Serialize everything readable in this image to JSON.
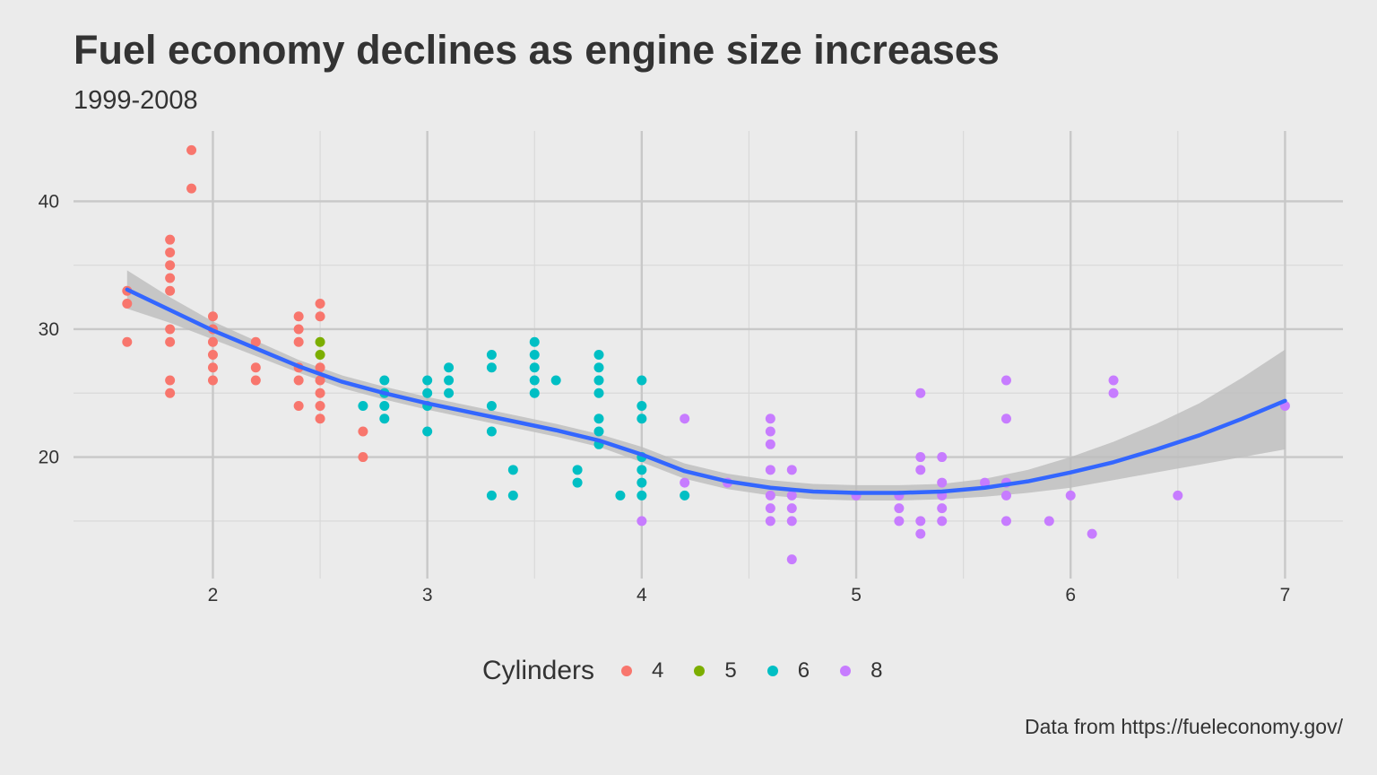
{
  "title": "Fuel economy declines as engine size increases",
  "subtitle": "1999-2008",
  "caption": "Data from https://fueleconomy.gov/",
  "legend": {
    "title": "Cylinders",
    "items": [
      {
        "label": "4",
        "color": "#f8766d"
      },
      {
        "label": "5",
        "color": "#7cae00"
      },
      {
        "label": "6",
        "color": "#00bfc4"
      },
      {
        "label": "8",
        "color": "#c77cff"
      }
    ]
  },
  "chart_data": {
    "type": "scatter",
    "title": "Fuel economy declines as engine size increases",
    "subtitle": "1999-2008",
    "xlabel": "",
    "ylabel": "",
    "xlim": [
      1.35,
      7.27
    ],
    "ylim": [
      10.5,
      45.5
    ],
    "x_ticks": [
      2,
      3,
      4,
      5,
      6,
      7
    ],
    "y_ticks": [
      20,
      30,
      40
    ],
    "grid": true,
    "legend_position": "bottom",
    "background": "#ebebeb",
    "series": [
      {
        "name": "4",
        "color": "#f8766d",
        "points": [
          [
            1.6,
            33
          ],
          [
            1.6,
            32
          ],
          [
            1.6,
            29
          ],
          [
            1.8,
            37
          ],
          [
            1.8,
            36
          ],
          [
            1.8,
            35
          ],
          [
            1.8,
            34
          ],
          [
            1.8,
            33
          ],
          [
            1.8,
            30
          ],
          [
            1.8,
            29
          ],
          [
            1.8,
            26
          ],
          [
            1.8,
            25
          ],
          [
            1.9,
            44
          ],
          [
            1.9,
            41
          ],
          [
            2.0,
            31
          ],
          [
            2.0,
            30
          ],
          [
            2.0,
            29
          ],
          [
            2.0,
            28
          ],
          [
            2.0,
            27
          ],
          [
            2.0,
            26
          ],
          [
            2.2,
            29
          ],
          [
            2.2,
            27
          ],
          [
            2.2,
            26
          ],
          [
            2.4,
            31
          ],
          [
            2.4,
            30
          ],
          [
            2.4,
            29
          ],
          [
            2.4,
            27
          ],
          [
            2.4,
            26
          ],
          [
            2.4,
            24
          ],
          [
            2.5,
            32
          ],
          [
            2.5,
            31
          ],
          [
            2.5,
            27
          ],
          [
            2.5,
            26
          ],
          [
            2.5,
            25
          ],
          [
            2.5,
            24
          ],
          [
            2.5,
            23
          ],
          [
            2.7,
            22
          ],
          [
            2.7,
            20
          ]
        ]
      },
      {
        "name": "5",
        "color": "#7cae00",
        "points": [
          [
            2.5,
            29
          ],
          [
            2.5,
            28
          ]
        ]
      },
      {
        "name": "6",
        "color": "#00bfc4",
        "points": [
          [
            2.7,
            24
          ],
          [
            2.8,
            26
          ],
          [
            2.8,
            25
          ],
          [
            2.8,
            24
          ],
          [
            2.8,
            23
          ],
          [
            3.0,
            26
          ],
          [
            3.0,
            25
          ],
          [
            3.0,
            24
          ],
          [
            3.0,
            22
          ],
          [
            3.1,
            27
          ],
          [
            3.1,
            26
          ],
          [
            3.1,
            25
          ],
          [
            3.3,
            28
          ],
          [
            3.3,
            27
          ],
          [
            3.3,
            24
          ],
          [
            3.3,
            22
          ],
          [
            3.3,
            17
          ],
          [
            3.4,
            19
          ],
          [
            3.4,
            17
          ],
          [
            3.5,
            29
          ],
          [
            3.5,
            28
          ],
          [
            3.5,
            27
          ],
          [
            3.5,
            26
          ],
          [
            3.5,
            25
          ],
          [
            3.6,
            26
          ],
          [
            3.7,
            19
          ],
          [
            3.7,
            18
          ],
          [
            3.8,
            28
          ],
          [
            3.8,
            27
          ],
          [
            3.8,
            26
          ],
          [
            3.8,
            25
          ],
          [
            3.8,
            23
          ],
          [
            3.8,
            22
          ],
          [
            3.8,
            21
          ],
          [
            3.9,
            17
          ],
          [
            4.0,
            26
          ],
          [
            4.0,
            24
          ],
          [
            4.0,
            23
          ],
          [
            4.0,
            20
          ],
          [
            4.0,
            19
          ],
          [
            4.0,
            18
          ],
          [
            4.0,
            17
          ],
          [
            4.2,
            17
          ]
        ]
      },
      {
        "name": "8",
        "color": "#c77cff",
        "points": [
          [
            4.0,
            15
          ],
          [
            4.2,
            23
          ],
          [
            4.2,
            18
          ],
          [
            4.4,
            18
          ],
          [
            4.6,
            23
          ],
          [
            4.6,
            22
          ],
          [
            4.6,
            21
          ],
          [
            4.6,
            19
          ],
          [
            4.6,
            17
          ],
          [
            4.6,
            16
          ],
          [
            4.6,
            15
          ],
          [
            4.7,
            19
          ],
          [
            4.7,
            17
          ],
          [
            4.7,
            16
          ],
          [
            4.7,
            15
          ],
          [
            4.7,
            12
          ],
          [
            5.0,
            17
          ],
          [
            5.2,
            17
          ],
          [
            5.2,
            16
          ],
          [
            5.2,
            15
          ],
          [
            5.3,
            25
          ],
          [
            5.3,
            20
          ],
          [
            5.3,
            19
          ],
          [
            5.3,
            15
          ],
          [
            5.3,
            14
          ],
          [
            5.4,
            20
          ],
          [
            5.4,
            18
          ],
          [
            5.4,
            17
          ],
          [
            5.4,
            16
          ],
          [
            5.4,
            15
          ],
          [
            5.6,
            18
          ],
          [
            5.7,
            26
          ],
          [
            5.7,
            23
          ],
          [
            5.7,
            18
          ],
          [
            5.7,
            17
          ],
          [
            5.7,
            15
          ],
          [
            5.9,
            15
          ],
          [
            6.0,
            17
          ],
          [
            6.1,
            14
          ],
          [
            6.2,
            26
          ],
          [
            6.2,
            25
          ],
          [
            6.5,
            17
          ],
          [
            7.0,
            24
          ]
        ]
      }
    ],
    "smooth": {
      "color": "#3366ff",
      "band_color": "#bdbdbd",
      "points": [
        {
          "x": 1.6,
          "y": 33.1,
          "lo": 31.6,
          "hi": 34.6
        },
        {
          "x": 1.8,
          "y": 31.5,
          "lo": 30.5,
          "hi": 32.5
        },
        {
          "x": 2.0,
          "y": 29.9,
          "lo": 29.2,
          "hi": 30.6
        },
        {
          "x": 2.2,
          "y": 28.5,
          "lo": 27.9,
          "hi": 29.1
        },
        {
          "x": 2.4,
          "y": 27.1,
          "lo": 26.6,
          "hi": 27.6
        },
        {
          "x": 2.6,
          "y": 25.9,
          "lo": 25.4,
          "hi": 26.4
        },
        {
          "x": 2.8,
          "y": 25.0,
          "lo": 24.5,
          "hi": 25.5
        },
        {
          "x": 3.0,
          "y": 24.2,
          "lo": 23.7,
          "hi": 24.7
        },
        {
          "x": 3.2,
          "y": 23.5,
          "lo": 23.0,
          "hi": 24.0
        },
        {
          "x": 3.4,
          "y": 22.8,
          "lo": 22.3,
          "hi": 23.3
        },
        {
          "x": 3.6,
          "y": 22.1,
          "lo": 21.6,
          "hi": 22.6
        },
        {
          "x": 3.8,
          "y": 21.3,
          "lo": 20.8,
          "hi": 21.8
        },
        {
          "x": 4.0,
          "y": 20.2,
          "lo": 19.6,
          "hi": 20.8
        },
        {
          "x": 4.2,
          "y": 18.9,
          "lo": 18.3,
          "hi": 19.5
        },
        {
          "x": 4.4,
          "y": 18.1,
          "lo": 17.5,
          "hi": 18.7
        },
        {
          "x": 4.6,
          "y": 17.6,
          "lo": 17.0,
          "hi": 18.2
        },
        {
          "x": 4.8,
          "y": 17.3,
          "lo": 16.7,
          "hi": 17.9
        },
        {
          "x": 5.0,
          "y": 17.2,
          "lo": 16.6,
          "hi": 17.8
        },
        {
          "x": 5.2,
          "y": 17.2,
          "lo": 16.6,
          "hi": 17.8
        },
        {
          "x": 5.4,
          "y": 17.3,
          "lo": 16.7,
          "hi": 17.9
        },
        {
          "x": 5.6,
          "y": 17.6,
          "lo": 16.9,
          "hi": 18.3
        },
        {
          "x": 5.8,
          "y": 18.1,
          "lo": 17.2,
          "hi": 19.0
        },
        {
          "x": 6.0,
          "y": 18.8,
          "lo": 17.6,
          "hi": 20.0
        },
        {
          "x": 6.2,
          "y": 19.6,
          "lo": 18.2,
          "hi": 21.2
        },
        {
          "x": 6.4,
          "y": 20.6,
          "lo": 18.8,
          "hi": 22.6
        },
        {
          "x": 6.6,
          "y": 21.7,
          "lo": 19.4,
          "hi": 24.2
        },
        {
          "x": 6.8,
          "y": 23.0,
          "lo": 20.0,
          "hi": 26.2
        },
        {
          "x": 7.0,
          "y": 24.4,
          "lo": 20.6,
          "hi": 28.4
        }
      ]
    }
  }
}
